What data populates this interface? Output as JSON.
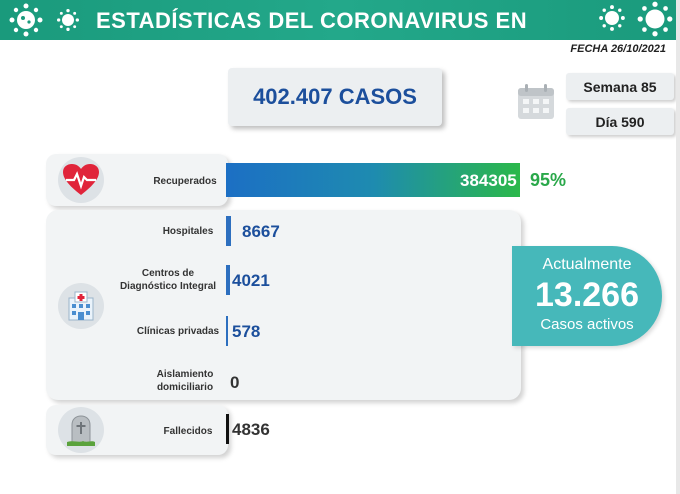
{
  "header": {
    "title": "ESTADÍSTICAS DEL CORONAVIRUS EN VENEZUELA",
    "fecha": "FECHA 26/10/2021"
  },
  "summary": {
    "casos": "402.407 CASOS",
    "semana": "Semana 85",
    "dia": "Día 590"
  },
  "rows": {
    "recuperados": {
      "label": "Recuperados",
      "value": "384305",
      "percent": "95%"
    },
    "hospitales": {
      "label": "Hospitales",
      "value": "8667"
    },
    "cdi": {
      "label_line1": "Centros de",
      "label_line2": "Diagnóstico Integral",
      "value": "4021"
    },
    "clinicas": {
      "label": "Clínicas privadas",
      "value": "578"
    },
    "aislamiento": {
      "label_line1": "Aislamiento",
      "label_line2": "domiciliario",
      "value": "0"
    },
    "fallecidos": {
      "label": "Fallecidos",
      "value": "4836"
    }
  },
  "activos": {
    "top": "Actualmente",
    "number": "13.266",
    "bottom": "Casos activos"
  },
  "colors": {
    "banner": "#1a9a7c",
    "accent_blue": "#1c4f9c",
    "green": "#2aa84a",
    "teal": "#46b8ba"
  },
  "icons": [
    "virus-icon",
    "calendar-icon",
    "heart-pulse-icon",
    "hospital-icon",
    "tombstone-icon"
  ]
}
